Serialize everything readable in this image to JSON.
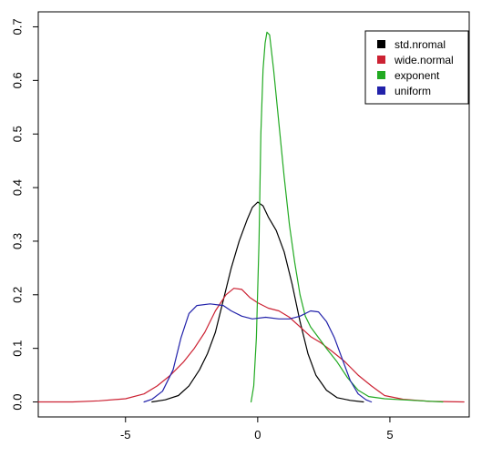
{
  "chart_data": {
    "type": "line",
    "title": "",
    "xlabel": "",
    "ylabel": "",
    "xlim": [
      -8.3,
      8.0
    ],
    "ylim": [
      -0.028,
      0.728
    ],
    "xticks": [
      -5,
      0,
      5
    ],
    "xtick_labels": [
      "-5",
      "0",
      "5"
    ],
    "yticks": [
      0.0,
      0.1,
      0.2,
      0.3,
      0.4,
      0.5,
      0.6,
      0.7
    ],
    "ytick_labels": [
      "0.0",
      "0.1",
      "0.2",
      "0.3",
      "0.4",
      "0.5",
      "0.6",
      "0.7"
    ],
    "grid": false,
    "legend_position": "top-right",
    "series": [
      {
        "name": "std.nromal",
        "color": "#000000",
        "points": [
          [
            -4.0,
            0.0
          ],
          [
            -3.5,
            0.004
          ],
          [
            -3.0,
            0.012
          ],
          [
            -2.6,
            0.03
          ],
          [
            -2.2,
            0.06
          ],
          [
            -1.9,
            0.09
          ],
          [
            -1.6,
            0.13
          ],
          [
            -1.3,
            0.19
          ],
          [
            -1.0,
            0.25
          ],
          [
            -0.7,
            0.3
          ],
          [
            -0.4,
            0.34
          ],
          [
            -0.2,
            0.363
          ],
          [
            0.0,
            0.373
          ],
          [
            0.2,
            0.366
          ],
          [
            0.4,
            0.345
          ],
          [
            0.7,
            0.32
          ],
          [
            1.0,
            0.28
          ],
          [
            1.3,
            0.22
          ],
          [
            1.6,
            0.15
          ],
          [
            1.9,
            0.09
          ],
          [
            2.2,
            0.05
          ],
          [
            2.6,
            0.022
          ],
          [
            3.0,
            0.008
          ],
          [
            3.5,
            0.003
          ],
          [
            4.0,
            0.0
          ]
        ]
      },
      {
        "name": "wide.normal",
        "color": "#cc2233",
        "points": [
          [
            -8.3,
            0.0
          ],
          [
            -7.0,
            0.0
          ],
          [
            -6.0,
            0.002
          ],
          [
            -5.0,
            0.006
          ],
          [
            -4.3,
            0.015
          ],
          [
            -3.8,
            0.03
          ],
          [
            -3.3,
            0.05
          ],
          [
            -2.8,
            0.075
          ],
          [
            -2.4,
            0.1
          ],
          [
            -2.0,
            0.13
          ],
          [
            -1.6,
            0.17
          ],
          [
            -1.2,
            0.2
          ],
          [
            -0.9,
            0.212
          ],
          [
            -0.6,
            0.21
          ],
          [
            -0.3,
            0.195
          ],
          [
            0.0,
            0.185
          ],
          [
            0.4,
            0.175
          ],
          [
            0.8,
            0.17
          ],
          [
            1.2,
            0.158
          ],
          [
            1.6,
            0.14
          ],
          [
            2.0,
            0.122
          ],
          [
            2.4,
            0.11
          ],
          [
            2.8,
            0.095
          ],
          [
            3.3,
            0.075
          ],
          [
            3.8,
            0.05
          ],
          [
            4.3,
            0.03
          ],
          [
            4.8,
            0.012
          ],
          [
            5.5,
            0.005
          ],
          [
            6.5,
            0.001
          ],
          [
            7.8,
            0.0
          ]
        ]
      },
      {
        "name": "exponent",
        "color": "#22aa22",
        "points": [
          [
            -0.25,
            0.0
          ],
          [
            -0.15,
            0.03
          ],
          [
            -0.05,
            0.12
          ],
          [
            0.05,
            0.3
          ],
          [
            0.12,
            0.5
          ],
          [
            0.2,
            0.62
          ],
          [
            0.28,
            0.67
          ],
          [
            0.35,
            0.69
          ],
          [
            0.45,
            0.685
          ],
          [
            0.6,
            0.62
          ],
          [
            0.8,
            0.52
          ],
          [
            1.0,
            0.42
          ],
          [
            1.2,
            0.33
          ],
          [
            1.4,
            0.26
          ],
          [
            1.6,
            0.2
          ],
          [
            1.8,
            0.16
          ],
          [
            2.0,
            0.14
          ],
          [
            2.3,
            0.12
          ],
          [
            2.6,
            0.1
          ],
          [
            3.0,
            0.075
          ],
          [
            3.4,
            0.045
          ],
          [
            3.8,
            0.022
          ],
          [
            4.2,
            0.01
          ],
          [
            4.8,
            0.006
          ],
          [
            5.5,
            0.004
          ],
          [
            6.2,
            0.002
          ],
          [
            7.0,
            0.0
          ]
        ]
      },
      {
        "name": "uniform",
        "color": "#2222aa",
        "points": [
          [
            -4.3,
            0.0
          ],
          [
            -4.0,
            0.005
          ],
          [
            -3.6,
            0.02
          ],
          [
            -3.2,
            0.06
          ],
          [
            -2.9,
            0.12
          ],
          [
            -2.6,
            0.165
          ],
          [
            -2.3,
            0.18
          ],
          [
            -1.8,
            0.183
          ],
          [
            -1.3,
            0.18
          ],
          [
            -1.0,
            0.17
          ],
          [
            -0.6,
            0.16
          ],
          [
            -0.2,
            0.155
          ],
          [
            0.3,
            0.158
          ],
          [
            0.8,
            0.155
          ],
          [
            1.2,
            0.155
          ],
          [
            1.6,
            0.16
          ],
          [
            2.0,
            0.17
          ],
          [
            2.3,
            0.168
          ],
          [
            2.6,
            0.15
          ],
          [
            2.9,
            0.12
          ],
          [
            3.2,
            0.08
          ],
          [
            3.5,
            0.04
          ],
          [
            3.8,
            0.015
          ],
          [
            4.1,
            0.004
          ],
          [
            4.3,
            0.0
          ]
        ]
      }
    ]
  }
}
